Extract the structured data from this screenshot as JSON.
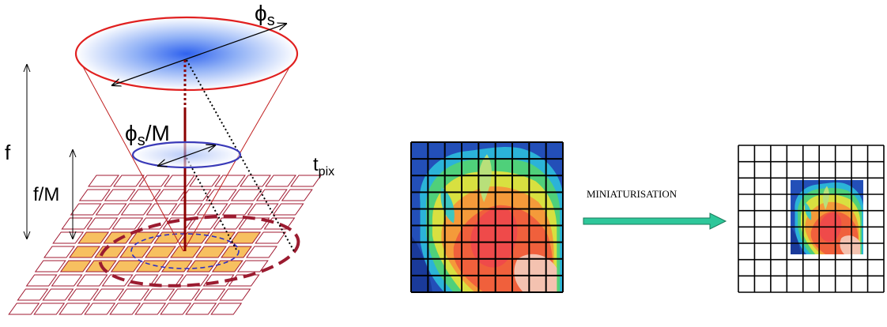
{
  "optics": {
    "aperture_label": "ϕ",
    "aperture_sub": "s",
    "reduced_aperture_sub": "s",
    "reduced_aperture_suffix": "/M",
    "focal_label": "f",
    "reduced_focal_label": "f/M",
    "pixel_pitch_label": "t",
    "pixel_pitch_sub": "pix"
  },
  "miniaturisation": {
    "arrow_label": "MINIATURISATION"
  },
  "colors": {
    "lens_outline": "#e02020",
    "lens_fill": "#3a6cf0",
    "small_lens": "#3a3ab8",
    "axis": "#8b0000",
    "pixel_outline": "#a01830",
    "pixel_lit": "#f7c060",
    "footprint": "#9b1b30",
    "arrow_fill": "#2ec79a"
  }
}
